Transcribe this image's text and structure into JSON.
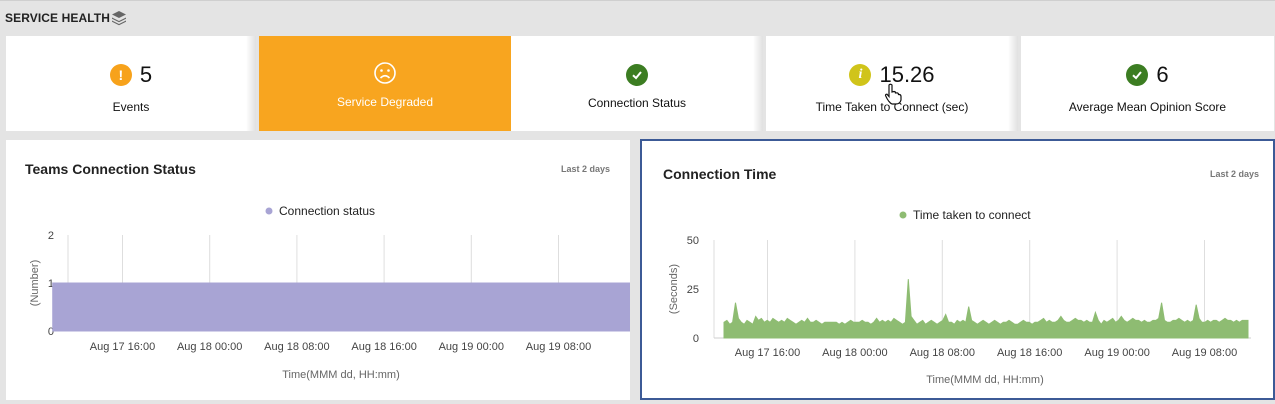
{
  "header": {
    "title": "SERVICE HEALTH"
  },
  "tiles": [
    {
      "value": "5",
      "label": "Events"
    },
    {
      "label": "Service Degraded"
    },
    {
      "label": "Connection Status"
    },
    {
      "value": "15.26",
      "label": "Time Taken to Connect (sec)"
    },
    {
      "value": "6",
      "label": "Average Mean Opinion Score"
    }
  ],
  "colors": {
    "warning": "#f7a21b",
    "degraded": "#f8a51f",
    "ok": "#3c7d22",
    "info": "#d0c41a",
    "panel_border_selected": "#3c5a96",
    "series_purple": "#a8a4d4",
    "series_green": "#8ebc72"
  },
  "icons": {
    "header": "layers-icon",
    "events": "exclamation-icon",
    "degraded": "sad-face-icon",
    "connection": "checkmark-icon",
    "time": "info-icon",
    "mos": "checkmark-icon",
    "cursor": "hand-pointer-icon"
  },
  "panels": {
    "left": {
      "title": "Teams Connection Status",
      "range": "Last 2 days",
      "selected": false
    },
    "right": {
      "title": "Connection Time",
      "range": "Last 2 days",
      "selected": true
    }
  },
  "chart_data": [
    {
      "type": "area",
      "title": "Teams Connection Status",
      "legend": [
        "Connection status"
      ],
      "legend_position": "top-center",
      "ylabel": "(Number)",
      "xlabel": "Time(MMM dd, HH:mm)",
      "ylim": [
        0,
        2
      ],
      "yticks": [
        "0",
        "1",
        "2"
      ],
      "xticks": [
        "Aug 17 16:00",
        "Aug 18 00:00",
        "Aug 18 08:00",
        "Aug 18 16:00",
        "Aug 19 00:00",
        "Aug 19 08:00"
      ],
      "x_hours_from_first_tick": [
        -6.4,
        54.8
      ],
      "series": [
        {
          "name": "Connection status",
          "x": [
            -6.4,
            54.8
          ],
          "values": [
            1,
            1
          ]
        }
      ]
    },
    {
      "type": "area",
      "title": "Connection Time",
      "legend": [
        "Time taken to connect"
      ],
      "legend_position": "top-center",
      "ylabel": "(Seconds)",
      "xlabel": "Time(MMM dd, HH:mm)",
      "ylim": [
        0,
        50
      ],
      "yticks": [
        "0",
        "25",
        "50"
      ],
      "xticks": [
        "Aug 17 16:00",
        "Aug 18 00:00",
        "Aug 18 08:00",
        "Aug 18 16:00",
        "Aug 19 00:00",
        "Aug 19 08:00"
      ],
      "series": [
        {
          "name": "Time taken to connect",
          "values": [
            8,
            9,
            7,
            8,
            18,
            10,
            8,
            7,
            9,
            8,
            7,
            11,
            9,
            10,
            8,
            9,
            8,
            10,
            9,
            8,
            9,
            8,
            10,
            9,
            8,
            7,
            8,
            9,
            8,
            10,
            8,
            8,
            9,
            8,
            7,
            8,
            8,
            8,
            8,
            8,
            7,
            8,
            7,
            8,
            9,
            8,
            8,
            8,
            9,
            8,
            8,
            7,
            8,
            10,
            8,
            9,
            8,
            9,
            8,
            10,
            9,
            8,
            7,
            8,
            30,
            11,
            9,
            7,
            8,
            9,
            7,
            8,
            9,
            8,
            7,
            8,
            9,
            12,
            8,
            8,
            7,
            9,
            8,
            9,
            8,
            16,
            9,
            8,
            7,
            8,
            9,
            8,
            7,
            8,
            9,
            8,
            7,
            8,
            8,
            9,
            8,
            7,
            7,
            8,
            9,
            8,
            8,
            7,
            8,
            8,
            9,
            10,
            8,
            9,
            8,
            8,
            9,
            11,
            9,
            8,
            8,
            9,
            10,
            9,
            9,
            8,
            9,
            8,
            8,
            13,
            9,
            7,
            9,
            8,
            9,
            10,
            8,
            9,
            11,
            9,
            8,
            9,
            10,
            9,
            9,
            8,
            9,
            8,
            8,
            9,
            9,
            10,
            18,
            9,
            8,
            8,
            9,
            9,
            10,
            9,
            8,
            9,
            8,
            9,
            17,
            10,
            8,
            8,
            9,
            8,
            9,
            9,
            8,
            9,
            10,
            9,
            9,
            8,
            9,
            8,
            9,
            9,
            9
          ]
        }
      ]
    }
  ]
}
